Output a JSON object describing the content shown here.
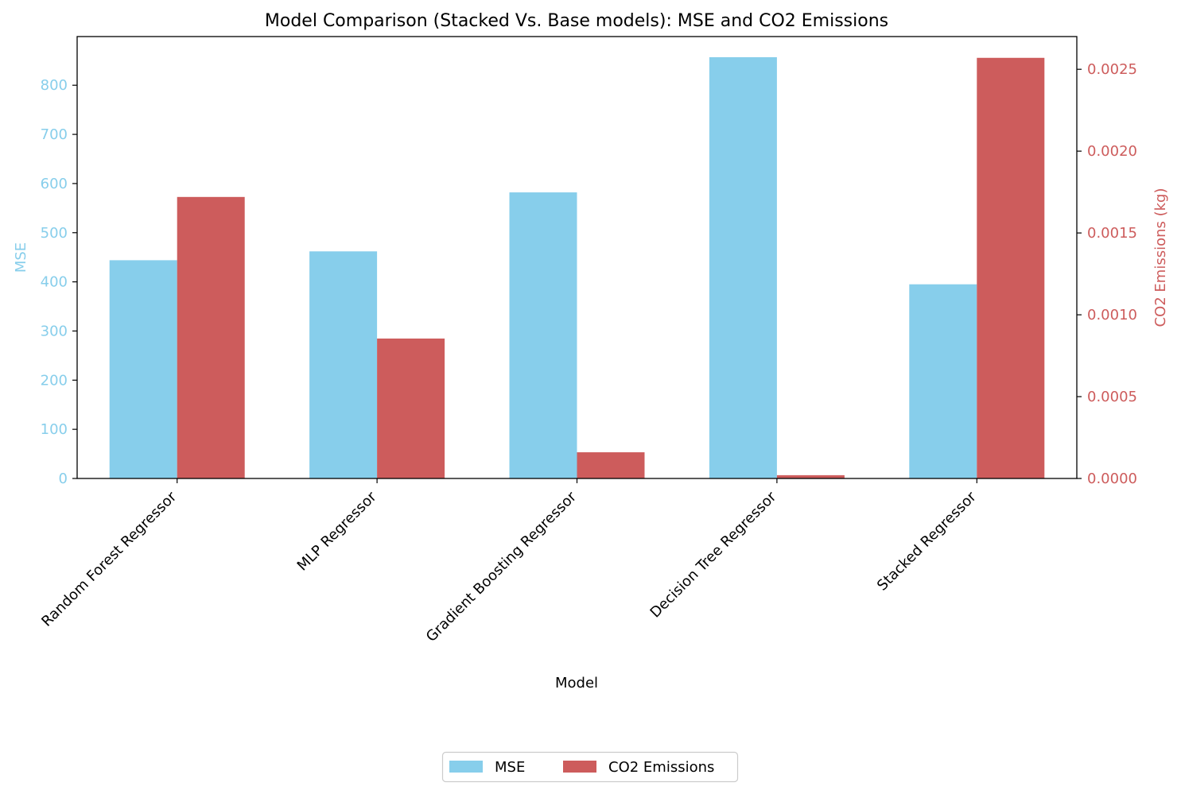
{
  "chart_data": {
    "type": "bar",
    "title": "Model Comparison (Stacked Vs. Base models): MSE and CO2 Emissions",
    "xlabel": "Model",
    "categories": [
      "Random Forest Regressor",
      "MLP Regressor",
      "Gradient Boosting Regressor",
      "Decision Tree Regressor",
      "Stacked Regressor"
    ],
    "series": [
      {
        "name": "MSE",
        "axis": "left",
        "color": "#87CEEB",
        "values": [
          444,
          462,
          582,
          857,
          395
        ]
      },
      {
        "name": "CO2 Emissions",
        "axis": "right",
        "color": "#CD5C5C",
        "values": [
          0.00172,
          0.000855,
          0.00016,
          2e-05,
          0.00257
        ]
      }
    ],
    "y_left": {
      "label": "MSE",
      "color": "#87CEEB",
      "ylim": [
        0,
        899
      ],
      "ticks": [
        0,
        100,
        200,
        300,
        400,
        500,
        600,
        700,
        800
      ],
      "tick_labels": [
        "0",
        "100",
        "200",
        "300",
        "400",
        "500",
        "600",
        "700",
        "800"
      ]
    },
    "y_right": {
      "label": "CO2 Emissions (kg)",
      "color": "#CD5C5C",
      "ylim": [
        0,
        0.0027
      ],
      "ticks": [
        0,
        0.0005,
        0.001,
        0.0015,
        0.002,
        0.0025
      ],
      "tick_labels": [
        "0.0000",
        "0.0005",
        "0.0010",
        "0.0015",
        "0.0020",
        "0.0025"
      ]
    },
    "legend": {
      "placement": "bottom-center",
      "entries": [
        "MSE",
        "CO2 Emissions"
      ]
    }
  }
}
